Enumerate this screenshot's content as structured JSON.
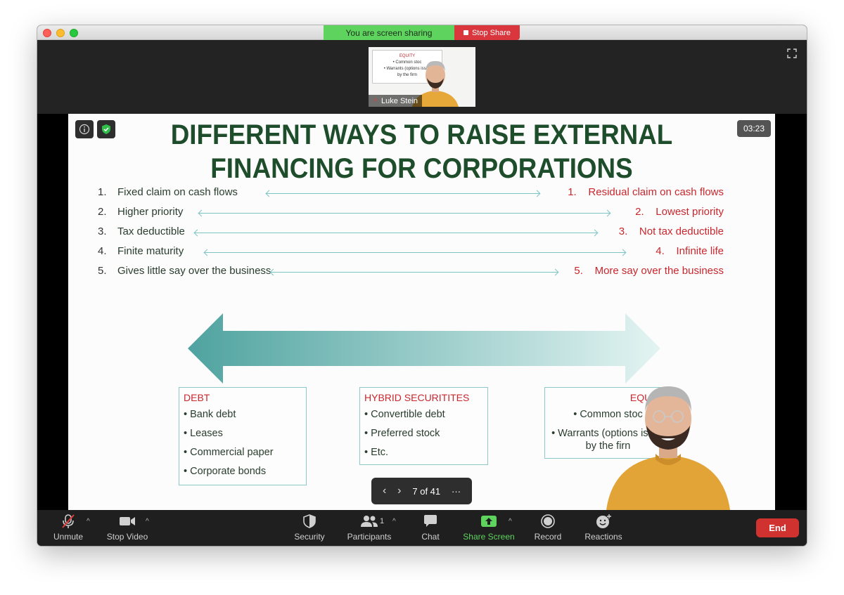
{
  "sharing_banner": {
    "status": "You are screen sharing",
    "stop_label": "Stop Share"
  },
  "self_view": {
    "name": "Luke Stein",
    "mini_slide": {
      "heading": "EQUITY",
      "line1": "• Common stoc",
      "line2": "• Warrants (options issue",
      "line3": "by the firm"
    }
  },
  "timer": "03:23",
  "slide": {
    "title_line1": "DIFFERENT WAYS TO RAISE EXTERNAL",
    "title_line2": "FINANCING FOR CORPORATIONS",
    "left_items": [
      {
        "num": "1.",
        "text": "Fixed claim on cash flows"
      },
      {
        "num": "2.",
        "text": "Higher priority"
      },
      {
        "num": "3.",
        "text": "Tax deductible"
      },
      {
        "num": "4.",
        "text": "Finite maturity"
      },
      {
        "num": "5.",
        "text": "Gives little say over the business"
      }
    ],
    "right_items": [
      {
        "num": "1.",
        "text": "Residual claim on cash flows"
      },
      {
        "num": "2.",
        "text": "Lowest priority"
      },
      {
        "num": "3.",
        "text": "Not tax deductible"
      },
      {
        "num": "4.",
        "text": "Infinite life"
      },
      {
        "num": "5.",
        "text": "More say over the business"
      }
    ],
    "debt": {
      "heading": "DEBT",
      "items": [
        "• Bank debt",
        "• Leases",
        "• Commercial paper",
        "• Corporate bonds"
      ]
    },
    "hybrid": {
      "heading": "HYBRID SECURITITES",
      "items": [
        "• Convertible debt",
        "• Preferred stock",
        "• Etc."
      ]
    },
    "equity": {
      "heading": "EQUITY",
      "items": [
        "• Common stoc",
        "• Warrants (options issue",
        "by the firn"
      ]
    },
    "colors": {
      "title": "#1e4d2b",
      "right_text": "#c9272d",
      "arrow_dark": "#4fa3a0",
      "arrow_light": "#e3f4f2"
    }
  },
  "slide_nav": {
    "prev": "‹",
    "next": "›",
    "counter": "7 of 41",
    "more": "···"
  },
  "toolbar": {
    "unmute": "Unmute",
    "stop_video": "Stop Video",
    "security": "Security",
    "participants": "Participants",
    "participants_count": "1",
    "chat": "Chat",
    "share_screen": "Share Screen",
    "record": "Record",
    "reactions": "Reactions",
    "end": "End",
    "colors": {
      "share_green": "#5ed45e",
      "end_red": "#d0332f"
    }
  }
}
